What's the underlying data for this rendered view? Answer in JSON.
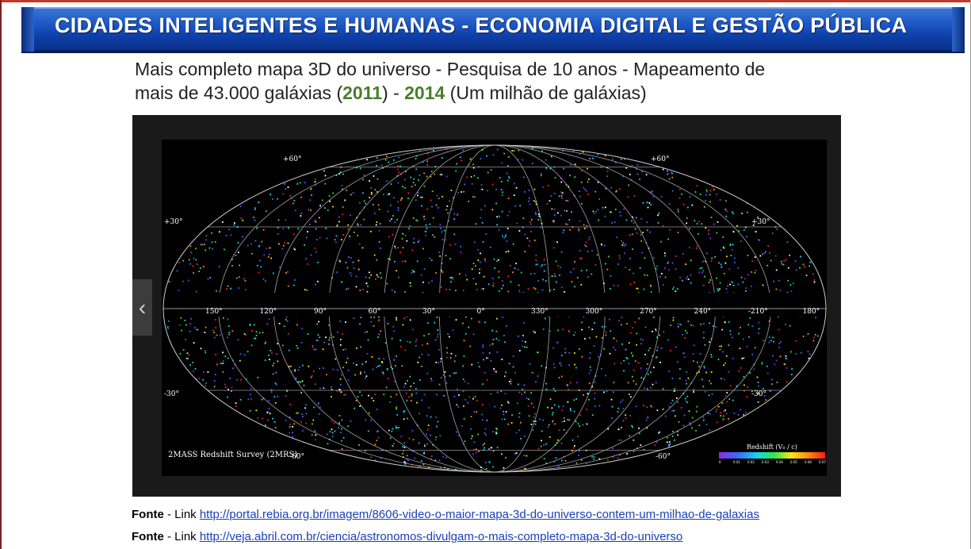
{
  "header": {
    "title": "CIDADES INTELIGENTES E HUMANAS - ECONOMIA DIGITAL E GESTÃO PÚBLICA",
    "accent_color": "#1c56c4"
  },
  "subtitle": {
    "line1": "Mais completo mapa 3D do universo - Pesquisa de 10 anos -  Mapeamento de",
    "line2_prefix": "mais de 43.000 galáxias (",
    "year1": "2011",
    "line2_mid1": ") - ",
    "year2": "2014",
    "line2_suffix": " (Um milhão de galáxias)",
    "highlight_color": "#4b7d2c"
  },
  "image": {
    "caption": "2MASS Redshift Survey (2MRS)",
    "legend_title": "Redshift (V₀ / c)",
    "legend_ticks": [
      "0",
      "0.01",
      "0.02",
      "0.03",
      "0.04",
      "0.05",
      "0.06",
      "0.07"
    ],
    "lat_labels": [
      "+60°",
      "+60°",
      "+30°",
      "+30°",
      "-30°",
      "-30°",
      "-60°",
      "-60°"
    ],
    "lon_labels": [
      "150°",
      "120°",
      "90°",
      "60°",
      "30°",
      "0°",
      "330°",
      "300°",
      "270°",
      "240°",
      "-210°",
      "180°"
    ],
    "prev_icon": "chevron-left-icon"
  },
  "sources": [
    {
      "label": "Fonte",
      "sep": " - Link ",
      "url": "http://portal.rebia.org.br/imagem/8606-video-o-maior-mapa-3d-do-universo-contem-um-milhao-de-galaxias"
    },
    {
      "label": "Fonte",
      "sep": " - Link ",
      "url": "http://veja.abril.com.br/ciencia/astronomos-divulgam-o-mais-completo-mapa-3d-do-universo"
    }
  ]
}
